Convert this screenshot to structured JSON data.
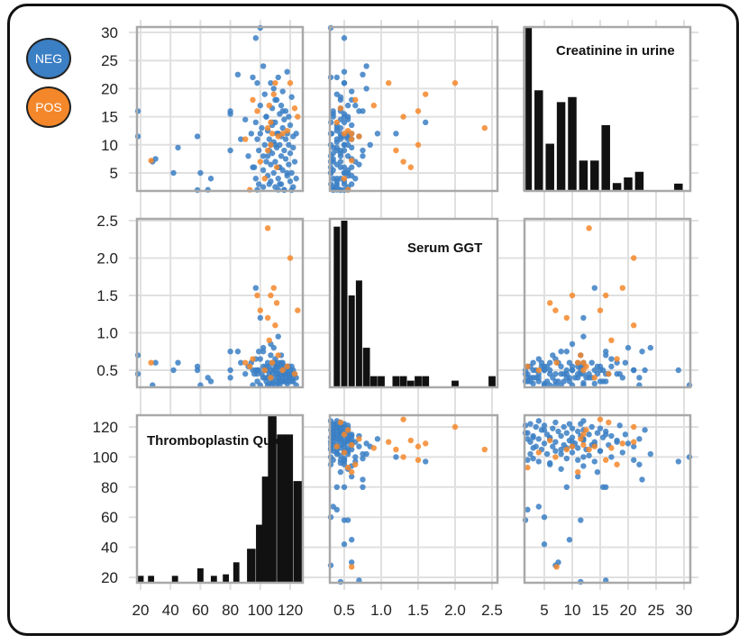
{
  "legend": [
    {
      "label": "NEG",
      "color": "#3b7fc4"
    },
    {
      "label": "POS",
      "color": "#f4872a"
    }
  ],
  "colors": {
    "NEG": "#3b7fc4",
    "POS": "#f4872a",
    "bar": "#111111"
  },
  "chart_data": {
    "type": "scatter",
    "title": "",
    "variables": [
      {
        "key": "creatinine",
        "label": "Creatinine in urine",
        "range": [
          1,
          31
        ],
        "ticks": [
          5,
          10,
          15,
          20,
          25,
          30
        ],
        "hist_bins": [
          [
            2,
            31
          ],
          [
            4,
            19.7
          ],
          [
            6,
            10.2
          ],
          [
            8,
            17.6
          ],
          [
            10,
            18.5
          ],
          [
            12,
            7.2
          ],
          [
            14,
            7.2
          ],
          [
            16,
            13.5
          ],
          [
            18,
            3.2
          ],
          [
            20,
            4.2
          ],
          [
            22,
            5.2
          ],
          [
            29,
            3.1
          ]
        ]
      },
      {
        "key": "ggt",
        "label": "Serum GGT",
        "range": [
          0.28,
          2.5
        ],
        "ticks": [
          0.5,
          1.0,
          1.5,
          2.0,
          2.5
        ],
        "hist_bins": [
          [
            0.4,
            2.42
          ],
          [
            0.5,
            2.5
          ],
          [
            0.6,
            1.5
          ],
          [
            0.7,
            1.7
          ],
          [
            0.8,
            0.8
          ],
          [
            0.9,
            0.42
          ],
          [
            1.0,
            0.42
          ],
          [
            1.2,
            0.42
          ],
          [
            1.3,
            0.42
          ],
          [
            1.4,
            0.36
          ],
          [
            1.5,
            0.42
          ],
          [
            1.6,
            0.42
          ],
          [
            2.0,
            0.36
          ],
          [
            2.5,
            0.42
          ]
        ]
      },
      {
        "key": "thrombo",
        "label": "Thromboplastin Quick",
        "range": [
          17,
          128
        ],
        "ticks": [
          20,
          40,
          60,
          80,
          100,
          120
        ],
        "hist_bins": [
          [
            20,
            21
          ],
          [
            27,
            21
          ],
          [
            43,
            21
          ],
          [
            60,
            26
          ],
          [
            69,
            21
          ],
          [
            77,
            22
          ],
          [
            84,
            30
          ],
          [
            94,
            39
          ],
          [
            100,
            55
          ],
          [
            104,
            87
          ],
          [
            108,
            128
          ],
          [
            114,
            115
          ],
          [
            119,
            115
          ],
          [
            125,
            84
          ]
        ]
      }
    ],
    "rows": [
      "creatinine",
      "ggt",
      "thrombo"
    ],
    "cols": [
      "thrombo",
      "ggt",
      "creatinine"
    ],
    "points_NEG": [
      [
        16,
        0.7,
        18
      ],
      [
        7.5,
        0.6,
        30
      ],
      [
        9.5,
        0.6,
        45
      ],
      [
        11.5,
        0.55,
        58
      ],
      [
        5,
        0.3,
        60
      ],
      [
        4,
        0.35,
        67
      ],
      [
        16,
        0.75,
        80
      ],
      [
        15.5,
        0.5,
        80
      ],
      [
        11,
        0.6,
        87
      ],
      [
        14.5,
        0.45,
        90
      ],
      [
        8,
        0.55,
        92
      ],
      [
        12,
        0.6,
        94
      ],
      [
        6,
        0.45,
        96
      ],
      [
        14,
        1.6,
        97
      ],
      [
        11,
        0.45,
        98
      ],
      [
        2,
        0.35,
        98
      ],
      [
        9,
        0.75,
        99
      ],
      [
        3,
        0.5,
        99
      ],
      [
        17,
        0.65,
        100
      ],
      [
        13,
        0.45,
        101
      ],
      [
        5.5,
        0.55,
        102
      ],
      [
        24,
        0.8,
        102
      ],
      [
        19,
        0.4,
        103
      ],
      [
        10,
        0.5,
        103
      ],
      [
        7,
        0.35,
        104
      ],
      [
        15,
        0.55,
        104
      ],
      [
        4.5,
        0.6,
        105
      ],
      [
        12.5,
        0.4,
        105
      ],
      [
        9,
        0.45,
        106
      ],
      [
        11,
        0.55,
        106
      ],
      [
        21,
        0.5,
        107
      ],
      [
        6.5,
        0.7,
        107
      ],
      [
        3.5,
        0.4,
        107
      ],
      [
        16.5,
        0.45,
        108
      ],
      [
        8.5,
        0.35,
        108
      ],
      [
        13.5,
        0.6,
        108
      ],
      [
        5,
        0.5,
        109
      ],
      [
        10.5,
        0.4,
        109
      ],
      [
        20,
        0.8,
        109
      ],
      [
        2.5,
        0.55,
        110
      ],
      [
        14,
        0.5,
        110
      ],
      [
        7,
        0.65,
        110
      ],
      [
        18,
        0.45,
        111
      ],
      [
        9.5,
        0.35,
        111
      ],
      [
        12,
        0.55,
        111
      ],
      [
        4,
        0.45,
        112
      ],
      [
        22,
        0.4,
        112
      ],
      [
        6,
        0.6,
        112
      ],
      [
        15.5,
        0.35,
        113
      ],
      [
        10,
        0.5,
        113
      ],
      [
        3,
        0.4,
        113
      ],
      [
        11.5,
        0.7,
        114
      ],
      [
        17,
        0.55,
        114
      ],
      [
        8,
        0.45,
        114
      ],
      [
        13,
        0.4,
        115
      ],
      [
        5.5,
        0.35,
        115
      ],
      [
        19.5,
        0.6,
        115
      ],
      [
        9,
        0.5,
        116
      ],
      [
        2,
        0.45,
        116
      ],
      [
        14.5,
        0.55,
        116
      ],
      [
        7.5,
        0.35,
        117
      ],
      [
        16,
        0.45,
        117
      ],
      [
        11,
        0.4,
        117
      ],
      [
        4.5,
        0.55,
        118
      ],
      [
        12,
        0.45,
        118
      ],
      [
        23,
        0.5,
        118
      ],
      [
        6.5,
        0.4,
        119
      ],
      [
        10,
        0.55,
        119
      ],
      [
        15,
        0.35,
        119
      ],
      [
        3.5,
        0.5,
        120
      ],
      [
        8.5,
        0.45,
        120
      ],
      [
        13.5,
        0.4,
        120
      ],
      [
        5,
        0.55,
        121
      ],
      [
        18.5,
        0.45,
        121
      ],
      [
        9.5,
        0.4,
        122
      ],
      [
        2.5,
        0.35,
        122
      ],
      [
        11.5,
        0.5,
        122
      ],
      [
        7,
        0.45,
        123
      ],
      [
        31,
        0.3,
        100
      ],
      [
        29,
        0.5,
        97
      ],
      [
        12,
        0.3,
        124
      ],
      [
        4,
        0.4,
        124
      ],
      [
        16,
        0.35,
        115
      ],
      [
        6,
        0.3,
        113
      ],
      [
        10,
        0.3,
        110
      ],
      [
        14,
        0.32,
        108
      ],
      [
        3,
        0.32,
        106
      ],
      [
        8,
        0.3,
        105
      ],
      [
        12,
        0.33,
        112
      ],
      [
        5,
        0.32,
        118
      ],
      [
        1.5,
        0.45,
        116
      ],
      [
        2,
        0.55,
        112
      ],
      [
        3,
        0.6,
        114
      ],
      [
        1.5,
        0.35,
        121
      ],
      [
        2.5,
        0.4,
        102
      ],
      [
        4,
        0.65,
        97
      ],
      [
        6,
        0.5,
        95
      ],
      [
        8,
        0.75,
        102
      ],
      [
        10,
        0.85,
        107
      ],
      [
        12,
        0.95,
        112
      ],
      [
        15,
        0.5,
        104
      ],
      [
        18,
        0.6,
        110
      ],
      [
        21,
        0.5,
        98
      ],
      [
        22,
        0.3,
        95
      ],
      [
        1.5,
        0.5,
        58
      ],
      [
        2,
        0.4,
        65
      ],
      [
        5,
        0.5,
        42
      ],
      [
        7,
        0.3,
        28
      ],
      [
        11.5,
        0.45,
        17
      ],
      [
        9,
        0.4,
        80
      ],
      [
        12,
        1.2,
        100
      ],
      [
        22.5,
        0.75,
        85
      ]
    ],
    "points_POS": [
      [
        7.2,
        0.6,
        27
      ],
      [
        11,
        0.6,
        90
      ],
      [
        16,
        1.5,
        98
      ],
      [
        10,
        1.5,
        107
      ],
      [
        12,
        0.6,
        108
      ],
      [
        7,
        1.3,
        100
      ],
      [
        13,
        2.4,
        105
      ],
      [
        9,
        1.2,
        105
      ],
      [
        17,
        0.9,
        106
      ],
      [
        4,
        0.5,
        103
      ],
      [
        21,
        1.1,
        110
      ],
      [
        12,
        0.5,
        115
      ],
      [
        19,
        1.6,
        109
      ],
      [
        6,
        1.4,
        111
      ],
      [
        11.5,
        0.7,
        112
      ],
      [
        18,
        0.65,
        95
      ],
      [
        21,
        2.0,
        120
      ],
      [
        2,
        0.55,
        93
      ],
      [
        14,
        0.4,
        107
      ],
      [
        15,
        1.3,
        125
      ],
      [
        12.5,
        0.55,
        118
      ],
      [
        16.5,
        0.45,
        123
      ]
    ]
  }
}
